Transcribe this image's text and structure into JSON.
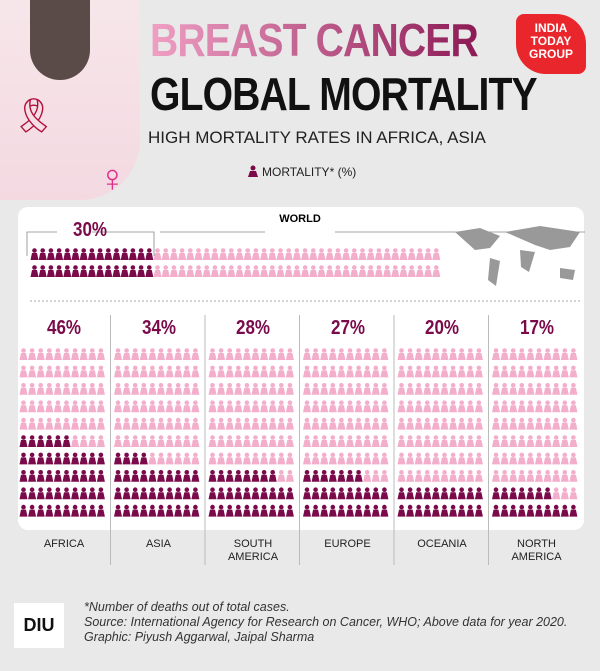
{
  "header": {
    "title_line1": "BREAST CANCER",
    "title_line2": "GLOBAL MORTALITY",
    "subtitle": "HIGH MORTALITY RATES IN AFRICA, ASIA",
    "legend": "MORTALITY* (%)",
    "brand": "INDIA TODAY GROUP"
  },
  "colors": {
    "dark": "#7a0a4a",
    "light": "#f2aecb"
  },
  "chart_data": {
    "type": "pictograph",
    "world": {
      "label": "WORLD",
      "value": 30,
      "display": "30%"
    },
    "categories": [
      "AFRICA",
      "ASIA",
      "SOUTH AMERICA",
      "EUROPE",
      "OCEANIA",
      "NORTH AMERICA"
    ],
    "values": [
      46,
      34,
      28,
      27,
      20,
      17
    ],
    "displays": [
      "46%",
      "34%",
      "28%",
      "27%",
      "20%",
      "17%"
    ],
    "unit": "%"
  },
  "footer": {
    "note": "*Number of deaths out of total cases.",
    "source": "Source: International Agency for Research on Cancer, WHO; Above data for year 2020.",
    "credit": "Graphic: Piyush Aggarwal, Jaipal Sharma",
    "logo": "DIU"
  }
}
